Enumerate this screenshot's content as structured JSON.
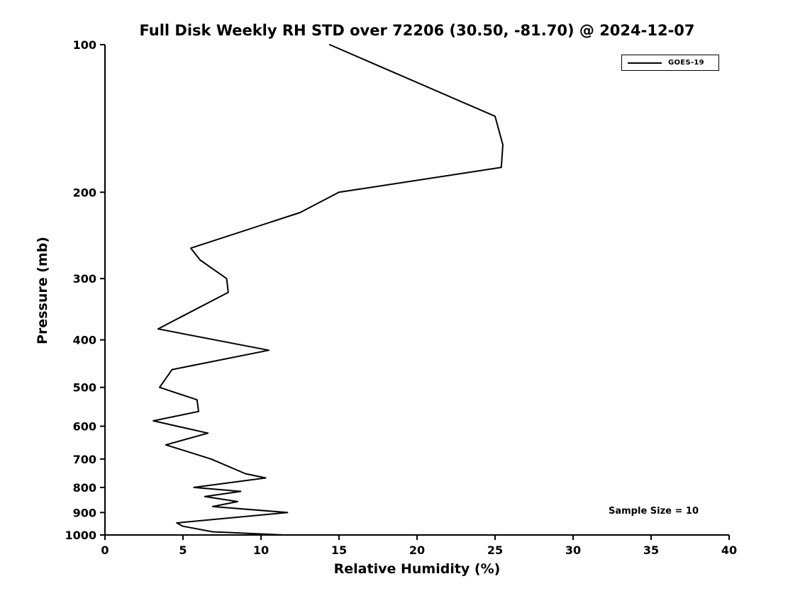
{
  "chart_data": {
    "type": "line",
    "title": "Full Disk Weekly RH STD over 72206 (30.50, -81.70) @ 2024-12-07",
    "xlabel": "Relative Humidity (%)",
    "ylabel": "Pressure (mb)",
    "xlim": [
      0,
      40
    ],
    "xticks": [
      0,
      5,
      10,
      15,
      20,
      25,
      30,
      35,
      40
    ],
    "ylim": [
      100,
      1000
    ],
    "yticks": [
      100,
      200,
      300,
      400,
      500,
      600,
      700,
      800,
      900,
      1000
    ],
    "yscale": "log",
    "y_axis_inverted": true,
    "grid": false,
    "line_color": "#000000",
    "legend": {
      "position": "upper right",
      "entries": [
        {
          "label": "GOES-19",
          "color": "#000000"
        }
      ]
    },
    "annotation": {
      "text": "Sample Size = 10",
      "position": "lower right"
    },
    "series": [
      {
        "name": "GOES-19",
        "color": "#000000",
        "pressure_mb": [
          100,
          140,
          160,
          178,
          200,
          220,
          260,
          275,
          300,
          320,
          380,
          420,
          460,
          500,
          530,
          560,
          585,
          620,
          655,
          700,
          750,
          765,
          800,
          815,
          835,
          855,
          875,
          900,
          945,
          960,
          985,
          1000
        ],
        "rh_std_percent": [
          14.4,
          25.0,
          25.5,
          25.4,
          15.0,
          12.5,
          5.5,
          6.1,
          7.8,
          7.9,
          3.4,
          10.5,
          4.3,
          3.5,
          5.9,
          6.0,
          3.1,
          6.6,
          3.9,
          6.8,
          9.0,
          10.3,
          5.7,
          8.7,
          6.4,
          8.5,
          6.9,
          11.7,
          4.6,
          5.0,
          6.9,
          11.5
        ]
      }
    ]
  }
}
